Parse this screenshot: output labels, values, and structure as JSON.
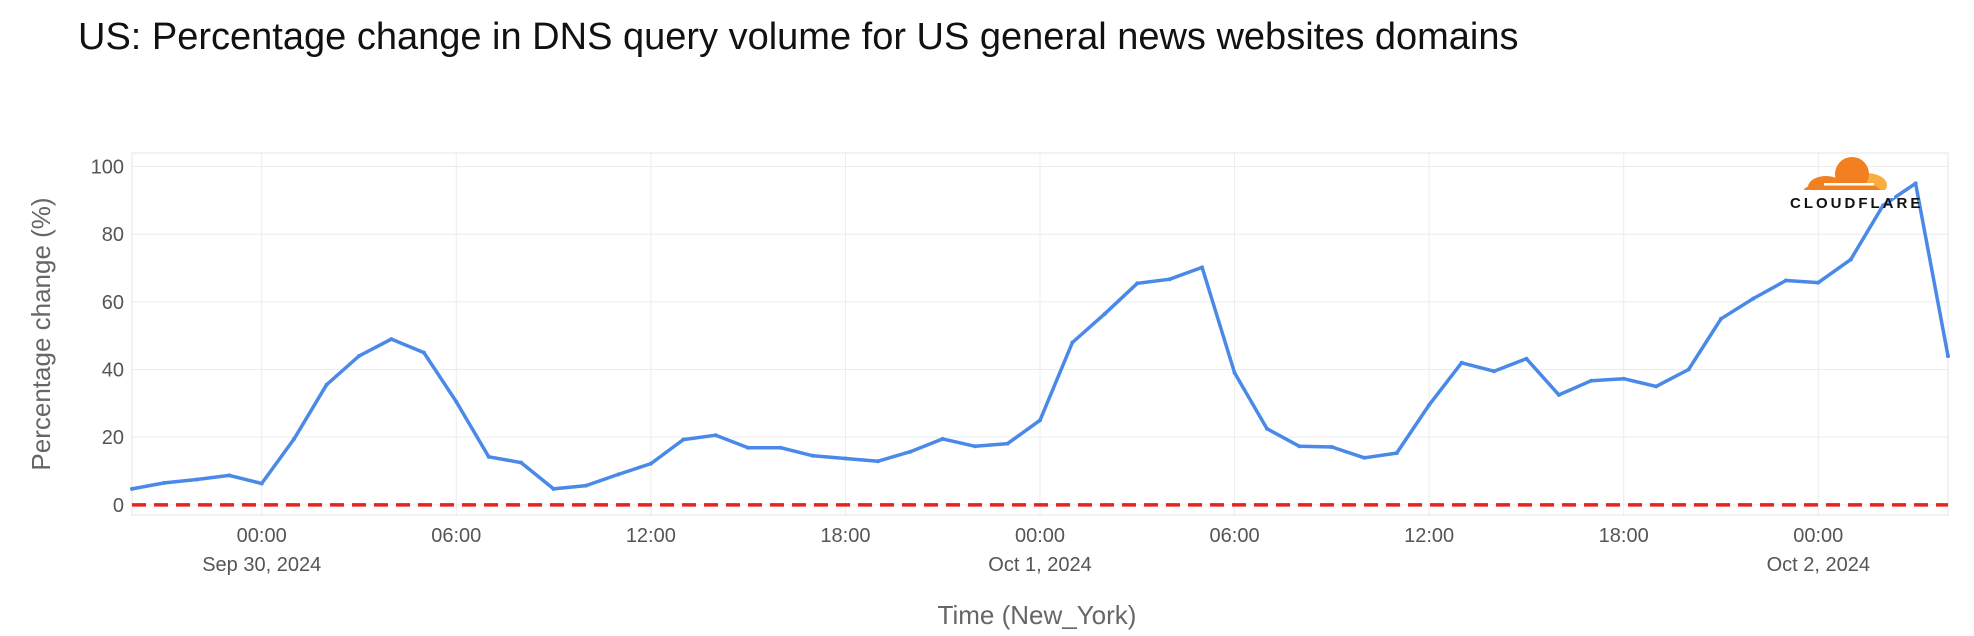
{
  "chart_data": {
    "type": "line",
    "title": "US: Percentage change in DNS query volume for US general news websites domains",
    "xlabel": "Time (New_York)",
    "ylabel": "Percentage change (%)",
    "ylim": [
      -3,
      104
    ],
    "yticks": [
      0,
      20,
      40,
      60,
      80,
      100
    ],
    "x_unit": "hour",
    "x_start": "2024-09-29T20:00",
    "x_end": "2024-10-02T04:00",
    "xticks": [
      {
        "t": "2024-09-30T00:00",
        "time": "00:00",
        "date": "Sep 30, 2024"
      },
      {
        "t": "2024-09-30T06:00",
        "time": "06:00",
        "date": ""
      },
      {
        "t": "2024-09-30T12:00",
        "time": "12:00",
        "date": ""
      },
      {
        "t": "2024-09-30T18:00",
        "time": "18:00",
        "date": ""
      },
      {
        "t": "2024-10-01T00:00",
        "time": "00:00",
        "date": "Oct 1, 2024"
      },
      {
        "t": "2024-10-01T06:00",
        "time": "06:00",
        "date": ""
      },
      {
        "t": "2024-10-01T12:00",
        "time": "12:00",
        "date": ""
      },
      {
        "t": "2024-10-01T18:00",
        "time": "18:00",
        "date": ""
      },
      {
        "t": "2024-10-02T00:00",
        "time": "00:00",
        "date": "Oct 2, 2024"
      }
    ],
    "grid": true,
    "reference_line": {
      "y": 0,
      "color": "#e8221f",
      "style": "dashed"
    },
    "series": [
      {
        "color": "#4a89e8",
        "points": [
          [
            "2024-09-29T20:00",
            4.7
          ],
          [
            "2024-09-29T21:00",
            6.5
          ],
          [
            "2024-09-29T22:00",
            7.5
          ],
          [
            "2024-09-29T23:00",
            8.7
          ],
          [
            "2024-09-30T00:00",
            6.3
          ],
          [
            "2024-09-30T01:00",
            19.5
          ],
          [
            "2024-09-30T02:00",
            35.5
          ],
          [
            "2024-09-30T03:00",
            44.0
          ],
          [
            "2024-09-30T04:00",
            49.0
          ],
          [
            "2024-09-30T05:00",
            45.0
          ],
          [
            "2024-09-30T06:00",
            30.5
          ],
          [
            "2024-09-30T07:00",
            14.2
          ],
          [
            "2024-09-30T08:00",
            12.5
          ],
          [
            "2024-09-30T09:00",
            4.7
          ],
          [
            "2024-09-30T10:00",
            5.7
          ],
          [
            "2024-09-30T11:00",
            9.0
          ],
          [
            "2024-09-30T12:00",
            12.2
          ],
          [
            "2024-09-30T13:00",
            19.3
          ],
          [
            "2024-09-30T14:00",
            20.6
          ],
          [
            "2024-09-30T15:00",
            16.9
          ],
          [
            "2024-09-30T16:00",
            16.9
          ],
          [
            "2024-09-30T17:00",
            14.5
          ],
          [
            "2024-09-30T18:00",
            13.7
          ],
          [
            "2024-09-30T19:00",
            12.9
          ],
          [
            "2024-09-30T20:00",
            15.7
          ],
          [
            "2024-09-30T21:00",
            19.5
          ],
          [
            "2024-09-30T22:00",
            17.3
          ],
          [
            "2024-09-30T23:00",
            18.1
          ],
          [
            "2024-10-01T00:00",
            25.0
          ],
          [
            "2024-10-01T01:00",
            48.0
          ],
          [
            "2024-10-01T02:00",
            56.5
          ],
          [
            "2024-10-01T03:00",
            65.5
          ],
          [
            "2024-10-01T04:00",
            66.7
          ],
          [
            "2024-10-01T05:00",
            70.2
          ],
          [
            "2024-10-01T06:00",
            39.0
          ],
          [
            "2024-10-01T07:00",
            22.5
          ],
          [
            "2024-10-01T08:00",
            17.3
          ],
          [
            "2024-10-01T09:00",
            17.1
          ],
          [
            "2024-10-01T10:00",
            13.9
          ],
          [
            "2024-10-01T11:00",
            15.3
          ],
          [
            "2024-10-01T12:00",
            29.5
          ],
          [
            "2024-10-01T13:00",
            42.0
          ],
          [
            "2024-10-01T14:00",
            39.5
          ],
          [
            "2024-10-01T15:00",
            43.2
          ],
          [
            "2024-10-01T16:00",
            32.5
          ],
          [
            "2024-10-01T17:00",
            36.7
          ],
          [
            "2024-10-01T18:00",
            37.3
          ],
          [
            "2024-10-01T19:00",
            35.0
          ],
          [
            "2024-10-01T20:00",
            40.0
          ],
          [
            "2024-10-01T21:00",
            55.0
          ],
          [
            "2024-10-01T22:00",
            61.0
          ],
          [
            "2024-10-01T23:00",
            66.3
          ],
          [
            "2024-10-02T00:00",
            65.7
          ],
          [
            "2024-10-02T01:00",
            72.5
          ],
          [
            "2024-10-02T02:00",
            88.5
          ],
          [
            "2024-10-02T03:00",
            95.0
          ],
          [
            "2024-10-02T04:00",
            44.0
          ]
        ]
      }
    ]
  },
  "logo": {
    "name": "cloudflare-logo-icon",
    "text": "CLOUDFLARE",
    "colors": [
      "#f38020",
      "#faad3f"
    ]
  }
}
